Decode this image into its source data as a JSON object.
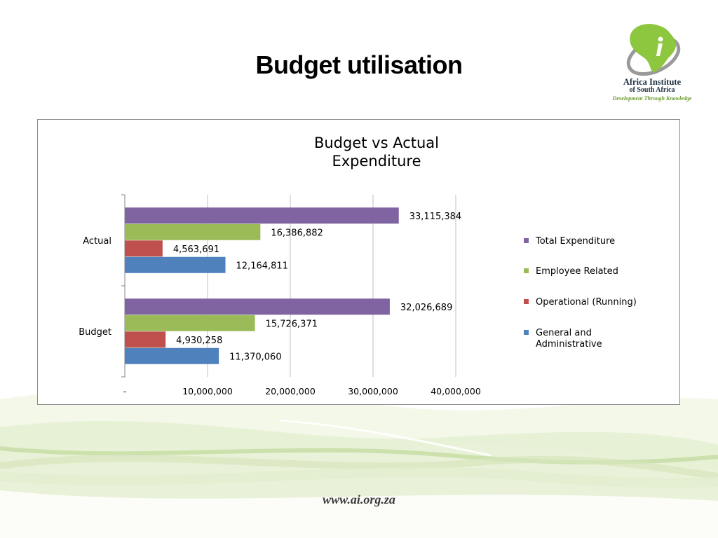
{
  "slide": {
    "title": "Budget utilisation",
    "footer_url": "www.ai.org.za"
  },
  "logo": {
    "line1": "Africa Institute",
    "line2": "of South Africa",
    "tagline": "Development Through Knowledge",
    "icon": "africa-map-icon",
    "colors": {
      "map": "#8dc63f",
      "swoosh": "#9a9a9a",
      "i": "#ffffff"
    }
  },
  "chart_data": {
    "type": "bar",
    "orientation": "horizontal",
    "title": "Budget vs Actual Expenditure",
    "categories": [
      "Actual",
      "Budget"
    ],
    "series": [
      {
        "name": "Total Expenditure",
        "color": "#8064a2",
        "values": [
          33115384,
          32026689
        ],
        "labels": [
          "33,115,384",
          "32,026,689"
        ]
      },
      {
        "name": "Employee Related",
        "color": "#9bbb59",
        "values": [
          16386882,
          15726371
        ],
        "labels": [
          "16,386,882",
          "15,726,371"
        ]
      },
      {
        "name": "Operational (Running)",
        "color": "#c0504d",
        "values": [
          4563691,
          4930258
        ],
        "labels": [
          "4,563,691",
          "4,930,258"
        ]
      },
      {
        "name": "General and Administrative",
        "color": "#4f81bd",
        "values": [
          12164811,
          11370060
        ],
        "labels": [
          "12,164,811",
          "11,370,060"
        ]
      }
    ],
    "xlim": [
      0,
      40000000
    ],
    "xticks": [
      0,
      10000000,
      20000000,
      30000000,
      40000000
    ],
    "xtick_labels": [
      "-",
      "10,000,000",
      "20,000,000",
      "30,000,000",
      "40,000,000"
    ],
    "grid": "vertical gridlines",
    "legend_position": "right"
  }
}
